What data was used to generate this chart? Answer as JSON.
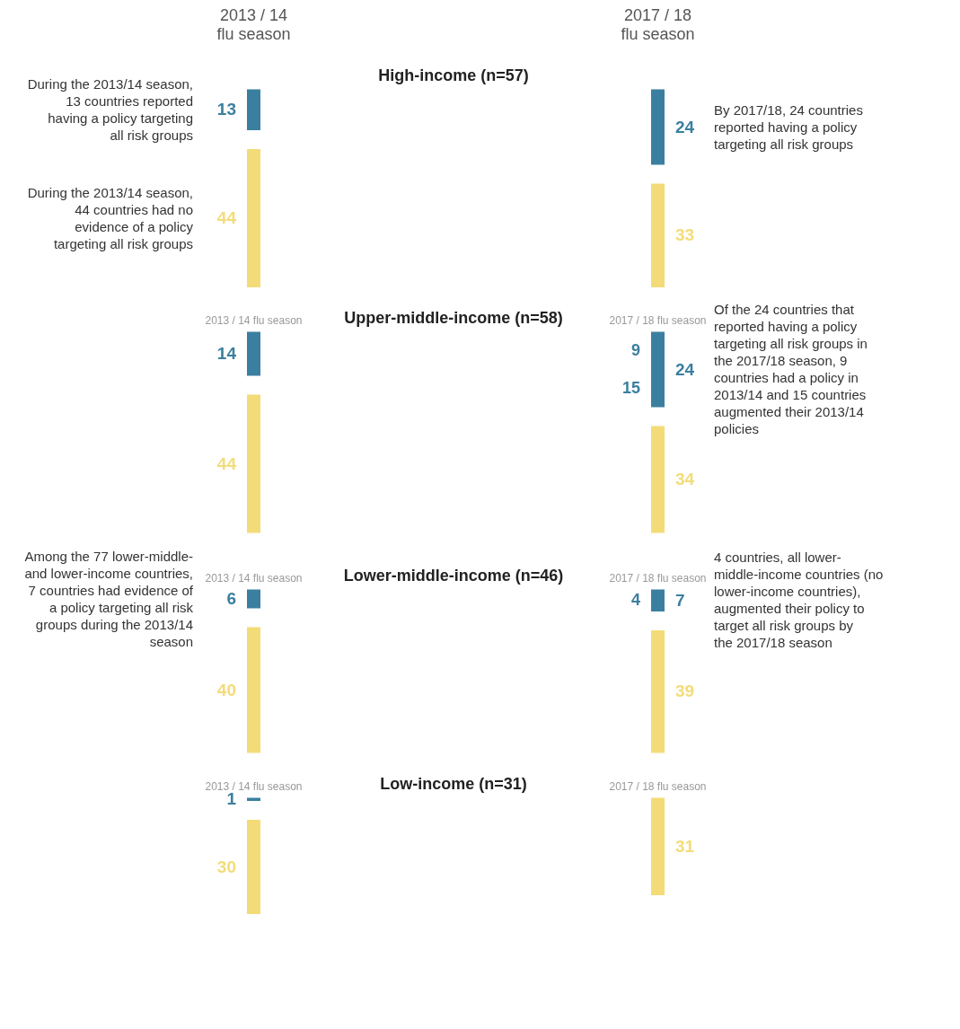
{
  "chart_data": [
    {
      "type": "other",
      "title": "High-income (n=57)",
      "categories": [
        "2013 / 14 flu season",
        "2017 / 18 flu season"
      ],
      "data_labels": true,
      "series": [
        {
          "color": "#3b7fa0",
          "values": [
            13,
            24
          ]
        },
        {
          "color": "#f3dc78",
          "values": [
            44,
            33
          ]
        }
      ],
      "annotations": [
        {
          "text": "During the 2013/14 season, 13 countries reported having a policy targeting all risk groups",
          "x": "2013 / 14 flu season"
        },
        {
          "text": "During the 2013/14 season, 44 countries had no evidence of a policy targeting all risk groups",
          "x": "2013 / 14 flu season"
        },
        {
          "text": "By 2017/18, 24 countries reported having a policy targeting all risk groups",
          "x": "2017 / 18 flu season"
        }
      ]
    },
    {
      "type": "other",
      "title": "Upper-middle-income (n=58)",
      "categories": [
        "2013 / 14 flu season",
        "2017 / 18 flu season"
      ],
      "data_labels": true,
      "series": [
        {
          "color": "#3b7fa0",
          "values": [
            14,
            24
          ]
        },
        {
          "color": "#f3dc78",
          "values": [
            44,
            34
          ]
        }
      ],
      "annotations": [
        {
          "text": "9",
          "x": "2017 / 18 flu season"
        },
        {
          "text": "15",
          "x": "2017 / 18 flu season"
        },
        {
          "text": "Of the 24 countries that reported having a policy targeting all risk groups in the 2017/18 season, 9 countries had a policy in 2013/14 and 15 countries augmented their 2013/14 policies",
          "x": "2017 / 18 flu season"
        }
      ]
    },
    {
      "type": "other",
      "title": "Lower-middle-income (n=46)",
      "categories": [
        "2013 / 14 flu season",
        "2017 / 18 flu season"
      ],
      "data_labels": true,
      "series": [
        {
          "color": "#3b7fa0",
          "values": [
            6,
            7
          ]
        },
        {
          "color": "#f3dc78",
          "values": [
            40,
            39
          ]
        }
      ],
      "annotations": [
        {
          "text": "4",
          "x": "2017 / 18 flu season"
        },
        {
          "text": "4 countries, all lower-middle-income countries (no lower-income countries), augmented their policy to target all risk groups by the 2017/18 season",
          "x": "2017 / 18 flu season"
        },
        {
          "text": "Among the 77 lower-middle- and lower-income countries, 7 countries had evidence of a policy targeting all risk groups during the 2013/14 season",
          "x": "2013 / 14 flu season"
        }
      ]
    },
    {
      "type": "other",
      "title": "Low-income (n=31)",
      "categories": [
        "2013 / 14 flu season",
        "2017 / 18 flu season"
      ],
      "data_labels": true,
      "series": [
        {
          "color": "#3b7fa0",
          "values": [
            1,
            null
          ]
        },
        {
          "color": "#f3dc78",
          "values": [
            30,
            31
          ]
        }
      ]
    }
  ]
}
